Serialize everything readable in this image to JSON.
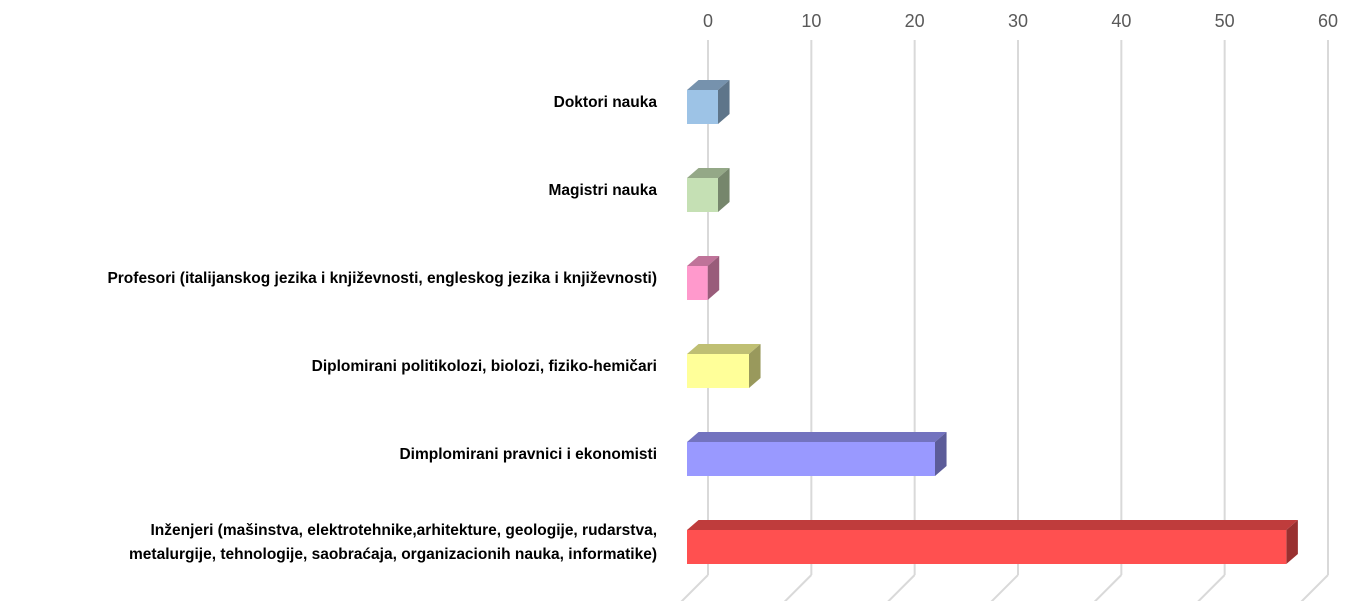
{
  "chart_data": {
    "type": "bar3d_horizontal",
    "categories": [
      "Doktori nauka",
      "Magistri nauka",
      "Profesori (italijanskog jezika i književnosti, engleskog jezika i književnosti)",
      "Diplomirani politikolozi, biolozi, fiziko-hemičari",
      "Dimplomirani pravnici i ekonomisti",
      "Inženjeri (mašinstva, elektrotehnike,arhitekture, geologije, rudarstva,\nmetalurgije, tehnologije, saobraćaja, organizacionih nauka, informatike)"
    ],
    "values": [
      3,
      3,
      2,
      6,
      24,
      58
    ],
    "colors": [
      "#9dc3e6",
      "#c5e0b4",
      "#ff99cc",
      "#ffff99",
      "#9999ff",
      "#ff5050"
    ],
    "xlim": [
      0,
      60
    ],
    "xticks": [
      0,
      10,
      20,
      30,
      40,
      50,
      60
    ],
    "grid": true
  }
}
